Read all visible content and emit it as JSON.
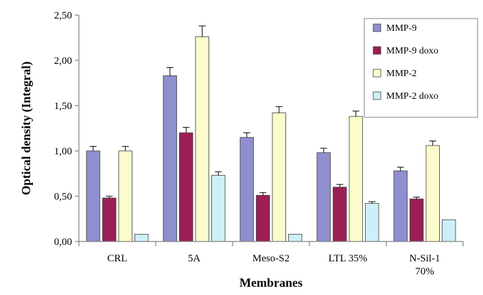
{
  "chart_data": {
    "type": "bar",
    "xlabel": "Membranes",
    "ylabel": "Optical density (Integral)",
    "ylim": [
      0,
      2.5
    ],
    "yticks": [
      "0,00",
      "0,50",
      "1,00",
      "1,50",
      "2,00",
      "2,50"
    ],
    "ytick_values": [
      0,
      0.5,
      1.0,
      1.5,
      2.0,
      2.5
    ],
    "categories": [
      {
        "line1": "CRL",
        "line2": ""
      },
      {
        "line1": "5A",
        "line2": ""
      },
      {
        "line1": "Meso-S2",
        "line2": ""
      },
      {
        "line1": "LTL 35%",
        "line2": ""
      },
      {
        "line1": "N-Sil-1",
        "line2": "70%"
      }
    ],
    "legend_position": "top-right",
    "grid": false,
    "error_bars": true,
    "series": [
      {
        "name": "MMP-9",
        "color": "#8f8fcf",
        "values": [
          1.0,
          1.83,
          1.15,
          0.98,
          0.78
        ],
        "errors": [
          0.05,
          0.09,
          0.05,
          0.05,
          0.04
        ]
      },
      {
        "name": "MMP-9 doxo",
        "color": "#9b1f55",
        "values": [
          0.48,
          1.2,
          0.51,
          0.6,
          0.47
        ],
        "errors": [
          0.02,
          0.06,
          0.03,
          0.03,
          0.02
        ]
      },
      {
        "name": "MMP-2",
        "color": "#fbfbcc",
        "values": [
          1.0,
          2.26,
          1.42,
          1.38,
          1.06
        ],
        "errors": [
          0.05,
          0.12,
          0.07,
          0.06,
          0.05
        ]
      },
      {
        "name": "MMP-2 doxo",
        "color": "#cdf0f8",
        "values": [
          0.08,
          0.73,
          0.08,
          0.42,
          0.24
        ],
        "errors": [
          0.0,
          0.04,
          0.0,
          0.02,
          0.0
        ]
      }
    ]
  }
}
